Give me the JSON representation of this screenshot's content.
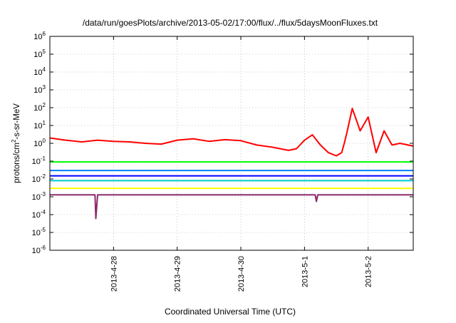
{
  "chart_data": {
    "type": "line",
    "title": "/data/run/goesPlots/archive/2013-05-02/17:00/flux/../flux/5daysMoonFluxes.txt",
    "ylabel": "protons/cm²-s-sr-MeV",
    "ylabel_parts": {
      "before": "protons/cm",
      "sup": "2",
      "after": "-s-sr-MeV"
    },
    "xlabel": "Coordinated Universal Time (UTC)",
    "yscale": "log",
    "ylim": [
      1e-06,
      1000000.0
    ],
    "xlim": [
      "2013-04-27 00:00",
      "2013-05-02 17:00"
    ],
    "grid": true,
    "y_ticks": [
      {
        "value": 1e-06,
        "exp": "-6"
      },
      {
        "value": 1e-05,
        "exp": "-5"
      },
      {
        "value": 0.0001,
        "exp": "-4"
      },
      {
        "value": 0.001,
        "exp": "-3"
      },
      {
        "value": 0.01,
        "exp": "-2"
      },
      {
        "value": 0.1,
        "exp": "-1"
      },
      {
        "value": 1.0,
        "exp": "0"
      },
      {
        "value": 10.0,
        "exp": "1"
      },
      {
        "value": 100.0,
        "exp": "2"
      },
      {
        "value": 1000.0,
        "exp": "3"
      },
      {
        "value": 10000.0,
        "exp": "4"
      },
      {
        "value": 100000.0,
        "exp": "5"
      },
      {
        "value": 1000000.0,
        "exp": "6"
      }
    ],
    "x_ticks": [
      "2013-4-28",
      "2013-4-29",
      "2013-4-30",
      "2013-5-1",
      "2013-5-2"
    ],
    "series": [
      {
        "color": "#ff0000",
        "x": [
          "2013-04-27 00:00",
          "2013-04-27 06:00",
          "2013-04-27 12:00",
          "2013-04-27 18:00",
          "2013-04-28 00:00",
          "2013-04-28 06:00",
          "2013-04-28 12:00",
          "2013-04-28 18:00",
          "2013-04-29 00:00",
          "2013-04-29 06:00",
          "2013-04-29 12:00",
          "2013-04-29 18:00",
          "2013-04-30 00:00",
          "2013-04-30 06:00",
          "2013-04-30 12:00",
          "2013-04-30 18:00",
          "2013-04-30 21:00",
          "2013-05-01 00:00",
          "2013-05-01 03:00",
          "2013-05-01 06:00",
          "2013-05-01 09:00",
          "2013-05-01 12:00",
          "2013-05-01 14:00",
          "2013-05-01 15:00",
          "2013-05-01 16:00",
          "2013-05-01 18:00",
          "2013-05-01 21:00",
          "2013-05-02 00:00",
          "2013-05-02 03:00",
          "2013-05-02 06:00",
          "2013-05-02 09:00",
          "2013-05-02 12:00",
          "2013-05-02 17:00"
        ],
        "y": [
          2.0,
          1.5,
          1.2,
          1.5,
          1.3,
          1.2,
          1.0,
          0.9,
          1.5,
          1.8,
          1.3,
          1.6,
          1.4,
          0.8,
          0.6,
          0.4,
          0.5,
          1.5,
          3.0,
          0.8,
          0.3,
          0.2,
          0.3,
          1.0,
          4.0,
          90,
          5,
          30,
          0.3,
          5,
          0.8,
          1.0,
          0.7
        ]
      },
      {
        "color": "#00ff00",
        "x": [
          "2013-04-27 00:00",
          "2013-05-02 17:00"
        ],
        "y": [
          0.09,
          0.09
        ]
      },
      {
        "color": "#0080ff",
        "x": [
          "2013-04-27 00:00",
          "2013-05-02 17:00"
        ],
        "y": [
          0.03,
          0.03
        ]
      },
      {
        "color": "#0000ff",
        "x": [
          "2013-04-27 00:00",
          "2013-05-02 17:00"
        ],
        "y": [
          0.015,
          0.015
        ]
      },
      {
        "color": "#00cccc",
        "x": [
          "2013-04-27 00:00",
          "2013-05-02 17:00"
        ],
        "y": [
          0.008,
          0.008
        ]
      },
      {
        "color": "#ffff00",
        "x": [
          "2013-04-27 00:00",
          "2013-05-02 17:00"
        ],
        "y": [
          0.003,
          0.003
        ]
      },
      {
        "color": "#8b2a6b",
        "x": [
          "2013-04-27 00:00",
          "2013-04-27 12:00",
          "2013-04-27 17:00",
          "2013-04-27 17:20",
          "2013-04-27 18:00",
          "2013-04-28 12:00",
          "2013-05-01 00:00",
          "2013-05-01 04:00",
          "2013-05-01 04:30",
          "2013-05-01 05:00",
          "2013-05-02 17:00"
        ],
        "y": [
          0.0013,
          0.0013,
          0.0013,
          6e-05,
          0.0013,
          0.0013,
          0.0013,
          0.0013,
          0.00055,
          0.0013,
          0.0013
        ]
      }
    ]
  }
}
